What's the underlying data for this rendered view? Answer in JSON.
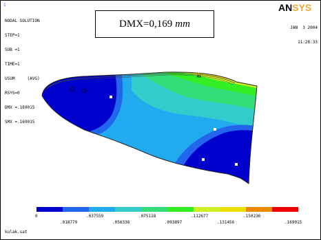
{
  "window": {
    "index": "1",
    "info_lines": [
      "NODAL SOLUTION",
      "STEP=1",
      "SUB =1",
      "TIME=1",
      "USUM     (AVG)",
      "RSYS=0",
      "DMX =.169015",
      "SMX =.169015"
    ],
    "max_label": "MX",
    "filename": "kulak.sat"
  },
  "callout": {
    "text": "DMX=0,169",
    "unit": "mm"
  },
  "logo": {
    "text_dark": "AN",
    "text_accent": "SYS"
  },
  "datetime": {
    "date": "JAN  3 2004",
    "time": "11:28:33"
  },
  "legend": {
    "colors": [
      "#0000cc",
      "#2266ee",
      "#22aaee",
      "#33cccc",
      "#33dd77",
      "#33ee22",
      "#ccee22",
      "#eedd00",
      "#ee8800",
      "#ee0000"
    ],
    "top_labels": [
      "0",
      ".037559",
      ".075118",
      ".112677",
      ".150236"
    ],
    "bottom_labels": [
      ".018779",
      ".056338",
      ".093897",
      ".131456",
      ".169015"
    ]
  }
}
